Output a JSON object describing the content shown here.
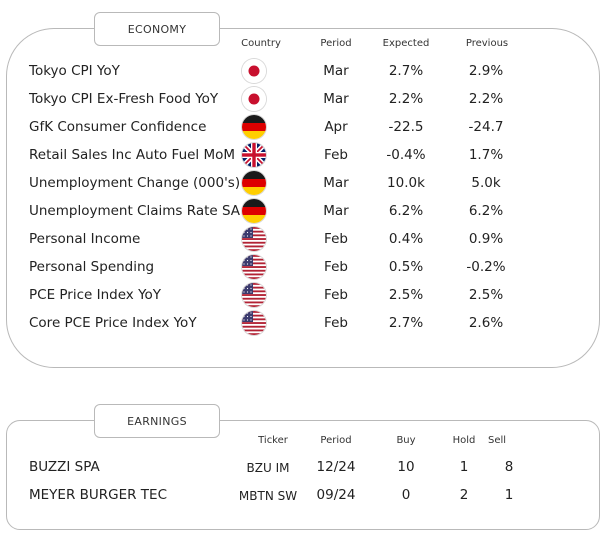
{
  "economy": {
    "title": "ECONOMY",
    "headers": {
      "country": "Country",
      "period": "Period",
      "expected": "Expected",
      "previous": "Previous"
    },
    "rows": [
      {
        "event": "Tokyo CPI YoY",
        "country": "japan-flag-icon",
        "period": "Mar",
        "expected": "2.7%",
        "previous": "2.9%"
      },
      {
        "event": "Tokyo CPI Ex-Fresh Food YoY",
        "country": "japan-flag-icon",
        "period": "Mar",
        "expected": "2.2%",
        "previous": "2.2%"
      },
      {
        "event": "GfK Consumer Confidence",
        "country": "germany-flag-icon",
        "period": "Apr",
        "expected": "-22.5",
        "previous": "-24.7"
      },
      {
        "event": "Retail Sales Inc Auto Fuel MoM",
        "country": "uk-flag-icon",
        "period": "Feb",
        "expected": "-0.4%",
        "previous": "1.7%"
      },
      {
        "event": "Unemployment Change (000's)",
        "country": "germany-flag-icon",
        "period": "Mar",
        "expected": "10.0k",
        "previous": "5.0k"
      },
      {
        "event": "Unemployment Claims Rate SA",
        "country": "germany-flag-icon",
        "period": "Mar",
        "expected": "6.2%",
        "previous": "6.2%"
      },
      {
        "event": "Personal Income",
        "country": "usa-flag-icon",
        "period": "Feb",
        "expected": "0.4%",
        "previous": "0.9%"
      },
      {
        "event": "Personal Spending",
        "country": "usa-flag-icon",
        "period": "Feb",
        "expected": "0.5%",
        "previous": "-0.2%"
      },
      {
        "event": "PCE Price Index YoY",
        "country": "usa-flag-icon",
        "period": "Feb",
        "expected": "2.5%",
        "previous": "2.5%"
      },
      {
        "event": "Core PCE Price Index YoY",
        "country": "usa-flag-icon",
        "period": "Feb",
        "expected": "2.7%",
        "previous": "2.6%"
      }
    ]
  },
  "earnings": {
    "title": "EARNINGS",
    "headers": {
      "ticker": "Ticker",
      "period": "Period",
      "buy": "Buy",
      "hold": "Hold",
      "sell": "Sell"
    },
    "rows": [
      {
        "company": "BUZZI SPA",
        "ticker": "BZU IM",
        "period": "12/24",
        "buy": "10",
        "hold": "1",
        "sell": "8"
      },
      {
        "company": "MEYER BURGER TEC",
        "ticker": "MBTN SW",
        "period": "09/24",
        "buy": "0",
        "hold": "2",
        "sell": "1"
      }
    ]
  },
  "colors": {
    "border": "#b9b9b9",
    "japan_red": "#c8102e",
    "germany_black": "#1a1a1a",
    "germany_red": "#dd0000",
    "germany_gold": "#ffce00",
    "uk_blue": "#012169",
    "uk_red": "#c8102e",
    "usa_red": "#b22234",
    "usa_blue": "#3c3b6e"
  }
}
